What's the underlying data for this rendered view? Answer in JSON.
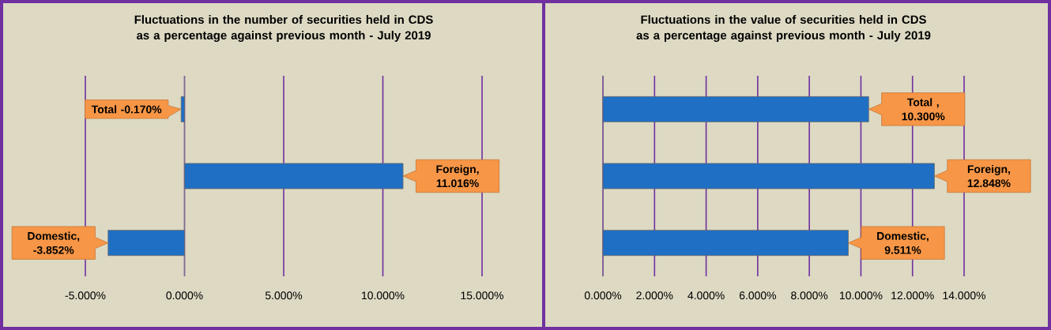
{
  "chart_data": [
    {
      "type": "bar",
      "orientation": "horizontal",
      "title": "Fluctuations in the number of securities held in CDS as a percentage against previous month - July 2019",
      "categories": [
        null,
        null,
        null
      ],
      "values": [
        -0.17,
        11.016,
        -3.852
      ],
      "color": "#1f6fc5",
      "value_labels": [
        "Total -0.170%",
        "Foreign, 11.016%",
        "Domestic, -3.852%"
      ],
      "xlim": [
        -5,
        15
      ],
      "xticks": [
        {
          "value": -5,
          "label": "-5.000%"
        },
        {
          "value": 0,
          "label": "0.000%"
        },
        {
          "value": 5,
          "label": "5.000%"
        },
        {
          "value": 10,
          "label": "10.000%"
        },
        {
          "value": 15,
          "label": "15.000%"
        }
      ],
      "grid": "x"
    },
    {
      "type": "bar",
      "orientation": "horizontal",
      "title": "Fluctuations in the value of securities held in CDS as a percentage against previous month - July 2019",
      "categories": [
        null,
        null,
        null
      ],
      "values": [
        10.3,
        12.848,
        9.511
      ],
      "color": "#1f6fc5",
      "value_labels": [
        "Total , 10.300%",
        "Foreign, 12.848%",
        "Domestic, 9.511%"
      ],
      "xlim": [
        0,
        14
      ],
      "xticks": [
        {
          "value": 0,
          "label": "0.000%"
        },
        {
          "value": 2,
          "label": "2.000%"
        },
        {
          "value": 4,
          "label": "4.000%"
        },
        {
          "value": 6,
          "label": "6.000%"
        },
        {
          "value": 8,
          "label": "8.000%"
        },
        {
          "value": 10,
          "label": "10.000%"
        },
        {
          "value": 12,
          "label": "12.000%"
        },
        {
          "value": 14,
          "label": "14.000%"
        }
      ],
      "grid": "x"
    }
  ]
}
